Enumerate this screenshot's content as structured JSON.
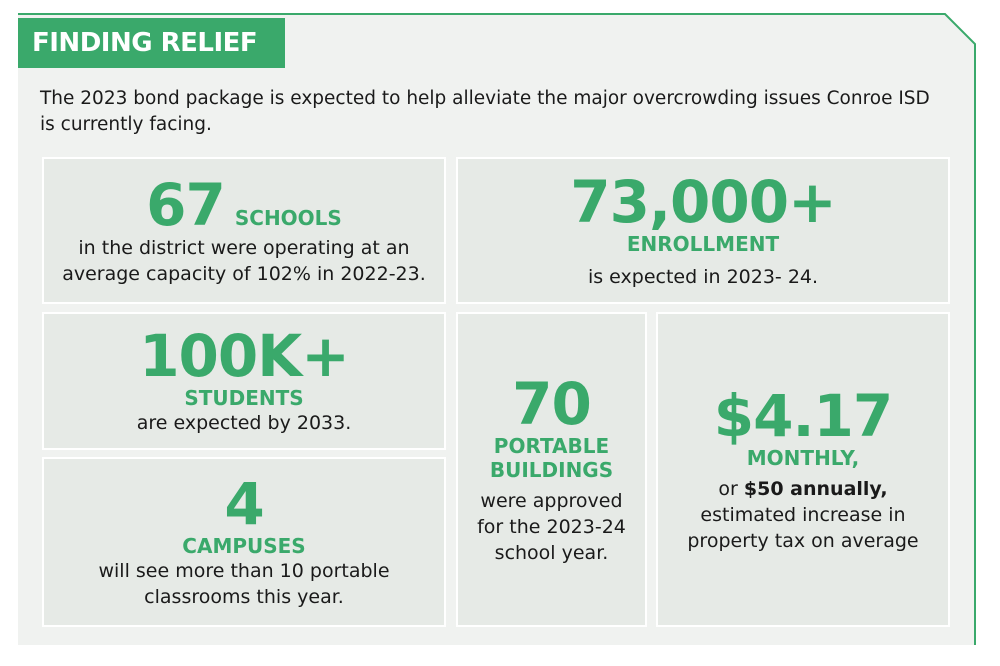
{
  "header": {
    "title": "FINDING RELIEF",
    "intro": "The 2023 bond package is expected to help alleviate the major overcrowding issues Conroe ISD is currently facing."
  },
  "stats": [
    {
      "number": "67",
      "label": "SCHOOLS",
      "description": "in the district were operating at an average capacity of 102% in 2022-23."
    },
    {
      "number": "73,000+",
      "label": "ENROLLMENT",
      "description": "is expected in 2023- 24."
    },
    {
      "number": "100K+",
      "label": "STUDENTS",
      "description": "are expected by 2033."
    },
    {
      "number": "4",
      "label": "CAMPUSES",
      "description": "will see more than 10 portable classrooms this year."
    },
    {
      "number": "70",
      "label": "PORTABLE BUILDINGS",
      "description": "were approved for the 2023-24 school year."
    },
    {
      "number": "$4.17",
      "label": "MONTHLY,",
      "description_prefix": "or",
      "description_bold": "$50 annually,",
      "description": "estimated increase in property tax on average"
    }
  ]
}
